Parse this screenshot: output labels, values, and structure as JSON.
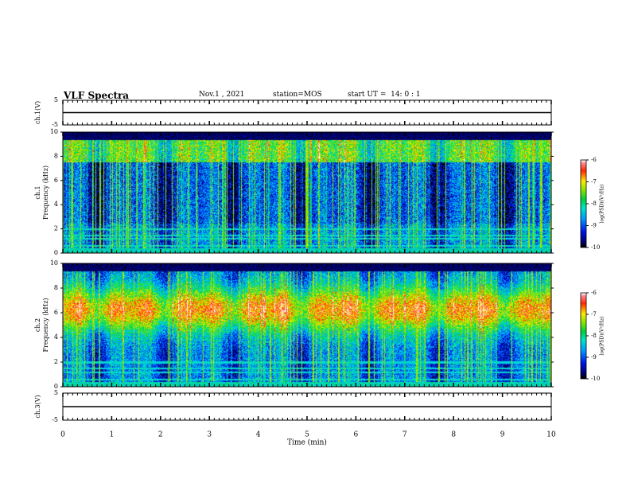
{
  "header": {
    "title": "VLF Spectra",
    "date": "Nov.1 , 2021",
    "station": "station=MOS",
    "start_ut": "start UT =  14: 0 : 1"
  },
  "chart_data": [
    {
      "type": "line",
      "panel": "ch1-waveform",
      "ylabel": "ch.1(V)",
      "ylim": [
        -5,
        5
      ],
      "yticks": [
        "5",
        "-5"
      ],
      "series": [
        {
          "values": [
            0,
            0
          ]
        }
      ],
      "x": [
        0,
        10
      ]
    },
    {
      "type": "heatmap",
      "panel": "ch1-spectrogram",
      "ylabel": "ch.1\nFrequency (kHz)",
      "ylabel_lines": [
        "ch.1",
        "Frequency (kHz)"
      ],
      "ylim": [
        0,
        10
      ],
      "yticks": [
        "0",
        "2",
        "4",
        "6",
        "8",
        "10"
      ],
      "colorbar": {
        "label": "log(PSD)(V²/Hz)",
        "range": [
          -10,
          -6
        ],
        "ticks": [
          "-6",
          "-7",
          "-8",
          "-9",
          "-10"
        ]
      }
    },
    {
      "type": "heatmap",
      "panel": "ch2-spectrogram",
      "ylabel_lines": [
        "ch.2",
        "Frequency (kHz)"
      ],
      "ylim": [
        0,
        10
      ],
      "yticks": [
        "0",
        "2",
        "4",
        "6",
        "8",
        "10"
      ],
      "colorbar": {
        "label": "log(PSD)(V²/Hz)",
        "range": [
          -10,
          -6
        ],
        "ticks": [
          "-6",
          "-7",
          "-8",
          "-9",
          "-10"
        ]
      }
    },
    {
      "type": "line",
      "panel": "ch3-waveform",
      "ylabel": "ch.3(V)",
      "ylim": [
        -5,
        5
      ],
      "yticks": [
        "5",
        "-5"
      ],
      "series": [
        {
          "values": [
            0,
            0
          ]
        }
      ],
      "x": [
        0,
        10
      ]
    }
  ],
  "xaxis": {
    "label": "Time (min)",
    "range": [
      0,
      10
    ],
    "ticks": [
      "0",
      "1",
      "2",
      "3",
      "4",
      "5",
      "6",
      "7",
      "8",
      "9",
      "10"
    ]
  }
}
